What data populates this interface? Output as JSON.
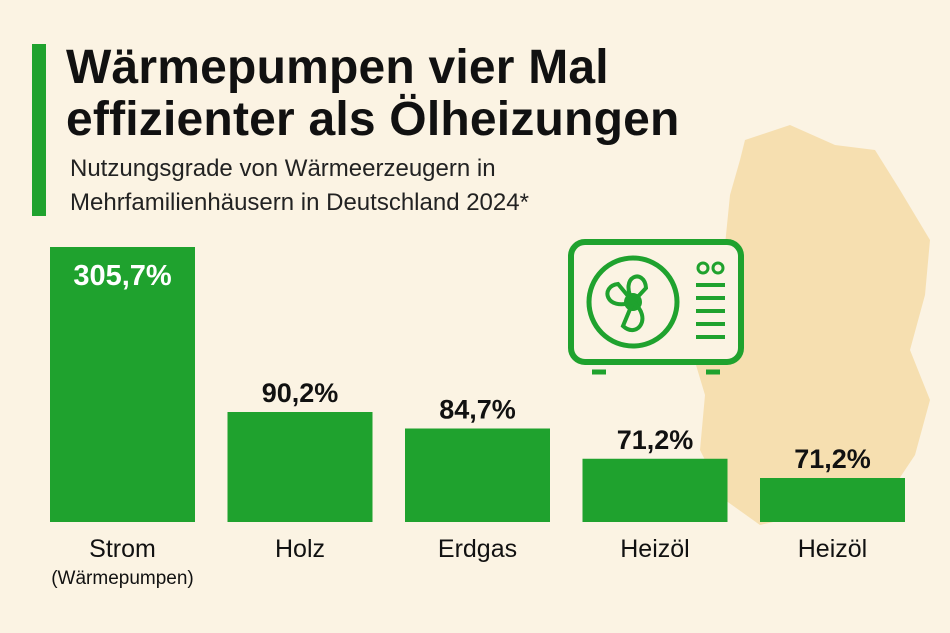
{
  "colors": {
    "background": "#fbf3e3",
    "bar": "#1fa22e",
    "map": "#f6dfb0",
    "text": "#111111",
    "inside_label": "#ffffff",
    "icon": "#1fa22e"
  },
  "icons": {
    "background": "germany-map-icon",
    "illustration": "heat-pump-icon"
  },
  "chart_data": {
    "type": "bar",
    "title_lines": [
      "Wärmepumpen vier Mal",
      "effizienter als Ölheizungen"
    ],
    "subtitle_lines": [
      "Nutzungsgrade von Wärmeerzeugern in",
      "Mehrfamilienhäusern in Deutschland 2024*"
    ],
    "categories": [
      "Strom",
      "Holz",
      "Erdgas",
      "Heizöl",
      "Heizöl"
    ],
    "category_sublabels": [
      "(Wärmepumpen)",
      "",
      "",
      "",
      ""
    ],
    "values": [
      305.7,
      90.2,
      84.7,
      71.2,
      71.2
    ],
    "value_labels": [
      "305,7%",
      "90,2%",
      "84,7%",
      "71,2%",
      "71,2%"
    ],
    "display_fractions": [
      1.0,
      0.4,
      0.34,
      0.23,
      0.16
    ],
    "unit": "%",
    "xlabel": "",
    "ylabel": "",
    "legend": "none",
    "grid": false
  }
}
